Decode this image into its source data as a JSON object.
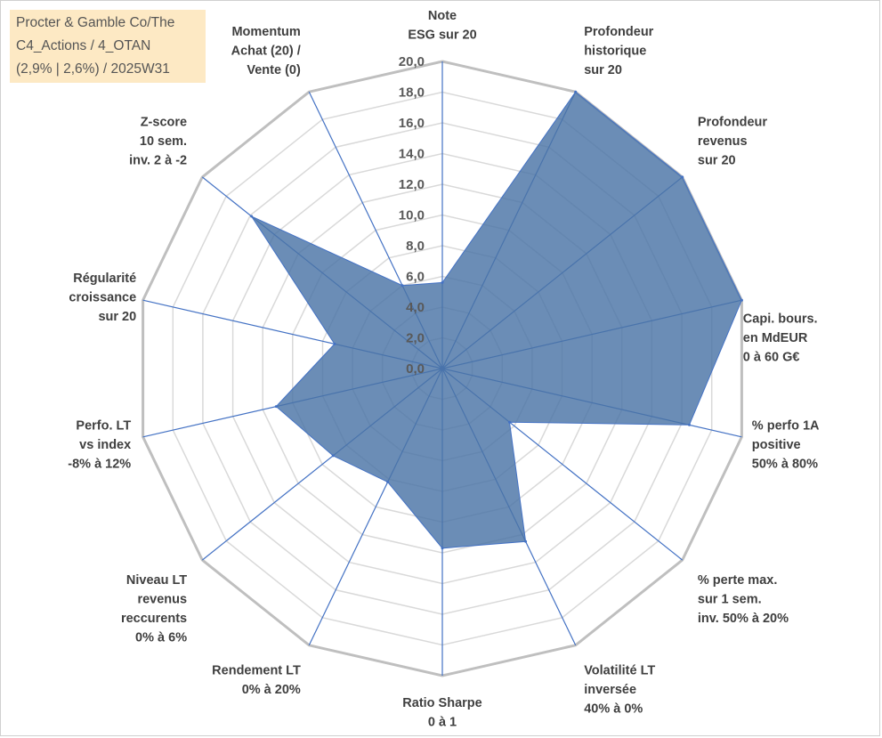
{
  "title": {
    "lines": [
      "Procter & Gamble Co/The",
      "C4_Actions / 4_OTAN",
      "(2,9% | 2,6%) / 2025W31"
    ]
  },
  "colors": {
    "fill": "#4a74a6",
    "outline": "#4472c4",
    "spoke": "#4472c4",
    "grid_major": "#bfbfbf",
    "grid_minor": "#d9d9d9",
    "title_bg": "#fde9c4"
  },
  "chart_data": {
    "type": "radar",
    "rmin": 0,
    "rmax": 20,
    "tick_step": 2,
    "tick_labels": [
      "0,0",
      "2,0",
      "4,0",
      "6,0",
      "8,0",
      "10,0",
      "12,0",
      "14,0",
      "16,0",
      "18,0",
      "20,0"
    ],
    "axes": [
      {
        "label": [
          "Note",
          "ESG sur 20"
        ],
        "value": 5.6
      },
      {
        "label": [
          "Profondeur",
          "historique",
          "sur 20"
        ],
        "value": 20
      },
      {
        "label": [
          "Profondeur",
          "revenus",
          "sur 20"
        ],
        "value": 20
      },
      {
        "label": [
          "Capi. bours.",
          "en MdEUR",
          "0 à 60 G€"
        ],
        "value": 20
      },
      {
        "label": [
          "% perfo 1A",
          "positive",
          "50% à 80%"
        ],
        "value": 16.5
      },
      {
        "label": [
          "% perte max.",
          "sur 1 sem.",
          "inv. 50% à 20%"
        ],
        "value": 5.6
      },
      {
        "label": [
          "Volatilité LT",
          "inversée",
          "40% à 0%"
        ],
        "value": 12.5
      },
      {
        "label": [
          "Ratio Sharpe",
          "0 à 1"
        ],
        "value": 11.7
      },
      {
        "label": [
          "Rendement LT",
          "0% à 20%"
        ],
        "value": 8.2
      },
      {
        "label": [
          "Niveau LT",
          "revenus",
          "reccurents",
          "0% à 6%"
        ],
        "value": 9.1
      },
      {
        "label": [
          "Perfo. LT",
          "vs index",
          "-8% à 12%"
        ],
        "value": 11.1
      },
      {
        "label": [
          "Régularité",
          "croissance",
          "sur 20"
        ],
        "value": 7.2
      },
      {
        "label": [
          "Z-score",
          "10 sem.",
          "inv. 2 à -2"
        ],
        "value": 15.9
      },
      {
        "label": [
          "Momentum",
          "Achat (20) /",
          "Vente (0)"
        ],
        "value": 6.0
      }
    ]
  }
}
